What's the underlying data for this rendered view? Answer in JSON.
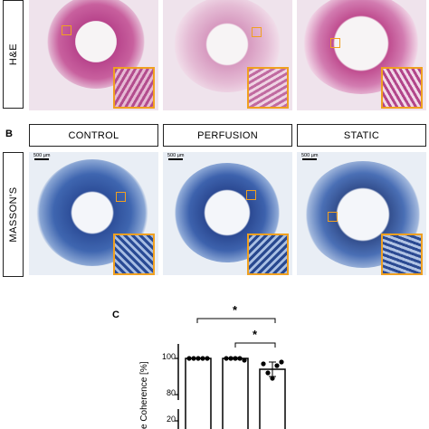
{
  "row_he": {
    "label": "H&E"
  },
  "panel_b": {
    "letter": "B"
  },
  "row_massons": {
    "label": "MASSON'S"
  },
  "columns": [
    "CONTROL",
    "PERFUSION",
    "STATIC"
  ],
  "scale_label": "500 µm",
  "panel_c": {
    "letter": "C",
    "significance": [
      "*",
      "*"
    ]
  },
  "chart_data": {
    "type": "bar",
    "categories": [
      "CONTROL",
      "PERFUSION",
      "STATIC"
    ],
    "series": [
      {
        "values": [
          100,
          100,
          94
        ],
        "points": [
          [
            100,
            100,
            100,
            100,
            100
          ],
          [
            100,
            100,
            100,
            100,
            99
          ],
          [
            97,
            92,
            89,
            96,
            98
          ]
        ],
        "errors": [
          0,
          0.5,
          4
        ]
      }
    ],
    "ylabel": "e Coherence [%]",
    "yticks": [
      "100",
      "80",
      "20"
    ],
    "axis_break": true,
    "colors": {
      "bar_edge": "#000000",
      "point": "#000000"
    }
  },
  "colors": {
    "he_stain": "#c85a9a",
    "masson_stain": "#3a5fa8",
    "roi": "#f0a020"
  }
}
